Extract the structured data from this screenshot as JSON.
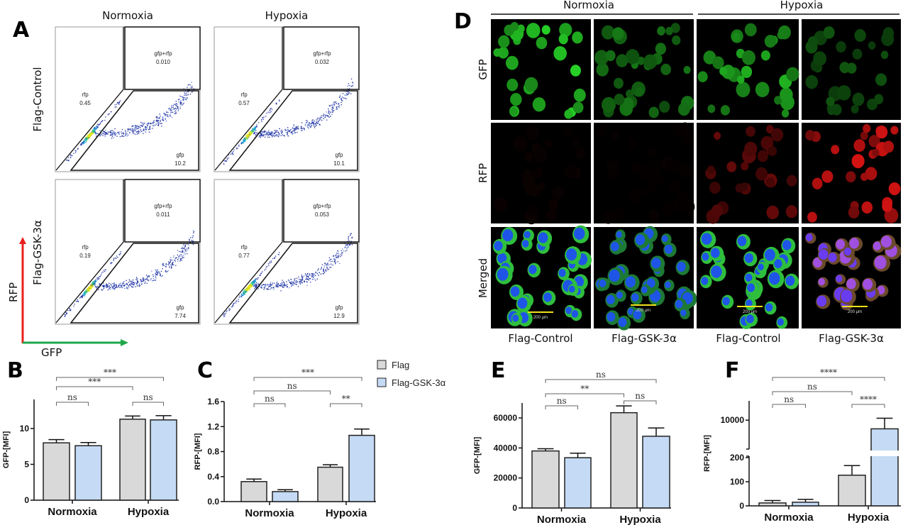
{
  "panel_labels": {
    "A": "A",
    "B": "B",
    "C": "C",
    "D": "D",
    "E": "E",
    "F": "F"
  },
  "flow_cytometry": {
    "columns": [
      "Normoxia",
      "Hypoxia"
    ],
    "rows": [
      "Flag-Control",
      "Flag-GSK-3α"
    ],
    "axis_y": "RFP",
    "axis_x": "GFP",
    "plots": [
      {
        "row": 0,
        "col": 0,
        "gates": {
          "gfp_rfp_label": "gfp+rfp",
          "gfp_rfp": "0.010",
          "rfp_label": "rfp",
          "rfp": "0.45",
          "gfp_label": "gfp",
          "gfp": "10.2"
        }
      },
      {
        "row": 0,
        "col": 1,
        "gates": {
          "gfp_rfp_label": "gfp+rfp",
          "gfp_rfp": "0.032",
          "rfp_label": "rfp",
          "rfp": "0.57",
          "gfp_label": "gfp",
          "gfp": "10.1"
        }
      },
      {
        "row": 1,
        "col": 0,
        "gates": {
          "gfp_rfp_label": "gfp+rfp",
          "gfp_rfp": "0.011",
          "rfp_label": "rfp",
          "rfp": "0.19",
          "gfp_label": "gfp",
          "gfp": "7.74"
        }
      },
      {
        "row": 1,
        "col": 1,
        "gates": {
          "gfp_rfp_label": "gfp+rfp",
          "gfp_rfp": "0.053",
          "rfp_label": "rfp",
          "rfp": "0.77",
          "gfp_label": "gfp",
          "gfp": "12.9"
        }
      }
    ]
  },
  "microscopy": {
    "groups": [
      "Normoxia",
      "Hypoxia"
    ],
    "rows": [
      "GFP",
      "RFP",
      "Merged"
    ],
    "columns": [
      "Flag-Control",
      "Flag-GSK-3α",
      "Flag-Control",
      "Flag-GSK-3α"
    ],
    "scale_bar": "200 µm"
  },
  "colors": {
    "flag": "#d9d9d9",
    "gsk": "#c5daf4",
    "rfp_arrow": "#e8201e",
    "gfp_arrow": "#1fa84a"
  },
  "legend": [
    "Flag",
    "Flag-GSK-3α"
  ],
  "chart_data": [
    {
      "panel": "B",
      "type": "bar",
      "categories": [
        "Normoxia",
        "Hypoxia"
      ],
      "ylabel": "GFP-[MFI]",
      "ylim": [
        0,
        14
      ],
      "yticks": [
        "0",
        "5",
        "10"
      ],
      "ytick_values": [
        0,
        5,
        10
      ],
      "series": [
        {
          "name": "Flag",
          "values": [
            8.0,
            11.3
          ],
          "errors": [
            0.45,
            0.45
          ]
        },
        {
          "name": "Flag-GSK-3α",
          "values": [
            7.6,
            11.2
          ],
          "errors": [
            0.45,
            0.6
          ]
        }
      ],
      "significance": [
        {
          "bars": [
            0,
            3
          ],
          "label": "***"
        },
        {
          "bars": [
            0,
            2
          ],
          "label": "***"
        },
        {
          "bars": [
            0,
            1
          ],
          "label": "ns"
        },
        {
          "bars": [
            2,
            3
          ],
          "label": "ns"
        }
      ]
    },
    {
      "panel": "C",
      "type": "bar",
      "categories": [
        "Normoxia",
        "Hypoxia"
      ],
      "ylabel": "RFP-[MFI]",
      "ylim": [
        0,
        1.6
      ],
      "yticks": [
        "0.0",
        "0.4",
        "0.8",
        "1.2",
        "1.6"
      ],
      "ytick_values": [
        0,
        0.4,
        0.8,
        1.2,
        1.6
      ],
      "series": [
        {
          "name": "Flag",
          "values": [
            0.32,
            0.55
          ],
          "errors": [
            0.04,
            0.04
          ]
        },
        {
          "name": "Flag-GSK-3α",
          "values": [
            0.16,
            1.06
          ],
          "errors": [
            0.03,
            0.1
          ]
        }
      ],
      "significance": [
        {
          "bars": [
            0,
            3
          ],
          "label": "***"
        },
        {
          "bars": [
            0,
            2
          ],
          "label": "ns"
        },
        {
          "bars": [
            0,
            1
          ],
          "label": "ns"
        },
        {
          "bars": [
            2,
            3
          ],
          "label": "**"
        }
      ]
    },
    {
      "panel": "E",
      "type": "bar",
      "categories": [
        "Normoxia",
        "Hypoxia"
      ],
      "ylabel": "GFP-[MFI]",
      "ylim": [
        0,
        70000
      ],
      "yticks": [
        "0",
        "20000",
        "40000",
        "60000"
      ],
      "ytick_values": [
        0,
        20000,
        40000,
        60000
      ],
      "series": [
        {
          "name": "Flag",
          "values": [
            38000,
            63500
          ],
          "errors": [
            1500,
            4500
          ]
        },
        {
          "name": "Flag-GSK-3α",
          "values": [
            33500,
            47800
          ],
          "errors": [
            3000,
            5500
          ]
        }
      ],
      "significance": [
        {
          "bars": [
            0,
            3
          ],
          "label": "ns"
        },
        {
          "bars": [
            0,
            2
          ],
          "label": "**"
        },
        {
          "bars": [
            0,
            1
          ],
          "label": "ns"
        },
        {
          "bars": [
            2,
            3
          ],
          "label": "ns"
        }
      ]
    },
    {
      "panel": "F",
      "type": "bar",
      "categories": [
        "Normoxia",
        "Hypoxia"
      ],
      "ylabel": "RFP-[MFI]",
      "axis_break": [
        200,
        4000
      ],
      "ylim": [
        0,
        14000
      ],
      "yticks": [
        "0",
        "100",
        "200",
        "10000"
      ],
      "ytick_values": [
        0,
        100,
        200,
        10000
      ],
      "series": [
        {
          "name": "Flag",
          "values": [
            12,
            127
          ],
          "errors": [
            10,
            40
          ]
        },
        {
          "name": "Flag-GSK-3α",
          "values": [
            15,
            8200
          ],
          "errors": [
            12,
            2200
          ]
        }
      ],
      "significance": [
        {
          "bars": [
            0,
            3
          ],
          "label": "****"
        },
        {
          "bars": [
            0,
            2
          ],
          "label": "ns"
        },
        {
          "bars": [
            0,
            1
          ],
          "label": "ns"
        },
        {
          "bars": [
            2,
            3
          ],
          "label": "****"
        }
      ]
    }
  ]
}
